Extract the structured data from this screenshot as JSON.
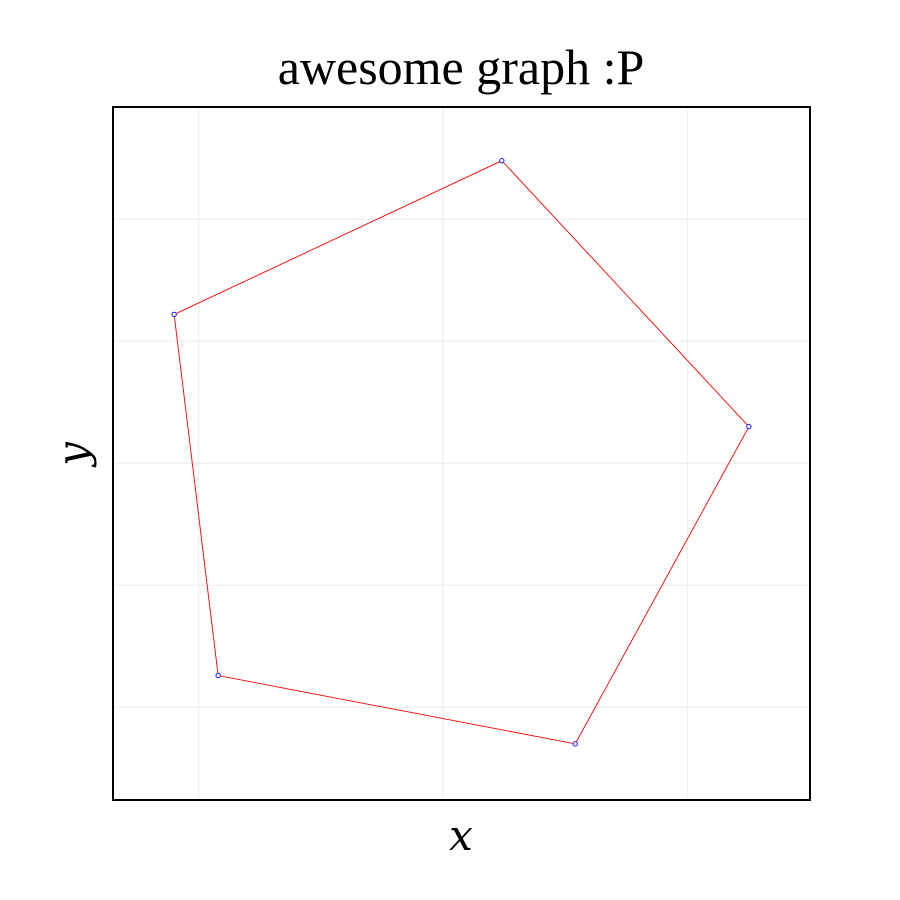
{
  "chart_data": {
    "type": "line",
    "title": "awesome graph :P",
    "xlabel": "x",
    "ylabel": "y",
    "xlim": [
      -1.35,
      1.5
    ],
    "ylim": [
      -1.38,
      1.46
    ],
    "xgrid": [
      -1,
      0,
      1
    ],
    "ygrid": [
      -1,
      -0.5,
      0,
      0.5,
      1
    ],
    "grid": true,
    "legend": "none",
    "series": [
      {
        "line_color": "#ff0000",
        "marker_color": "#0000ff",
        "closed": true,
        "points": [
          {
            "x": 0.24,
            "y": 1.24
          },
          {
            "x": 1.25,
            "y": 0.15
          },
          {
            "x": 0.54,
            "y": -1.15
          },
          {
            "x": -0.92,
            "y": -0.87
          },
          {
            "x": -1.1,
            "y": 0.61
          }
        ]
      }
    ]
  }
}
